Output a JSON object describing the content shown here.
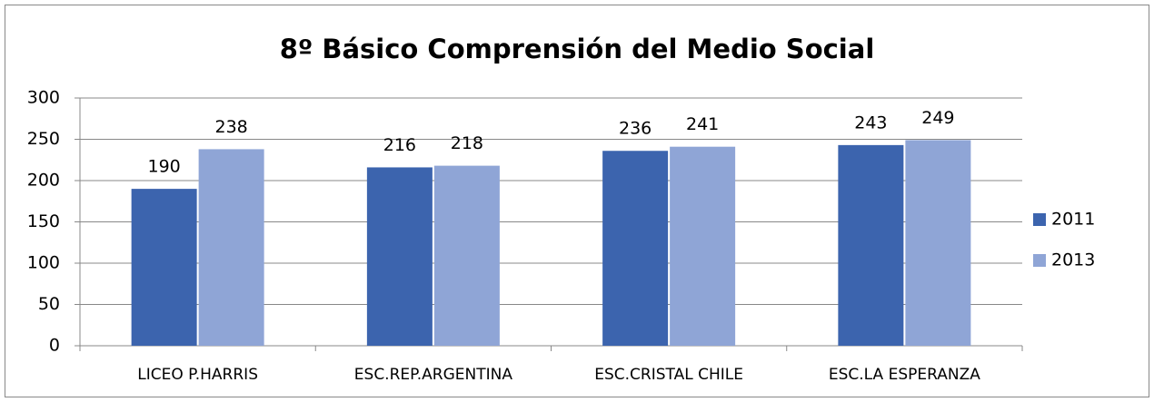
{
  "chart_data": {
    "type": "bar",
    "title": "8º Básico Comprensión del Medio Social",
    "categories": [
      "LICEO P.HARRIS",
      "ESC.REP.ARGENTINA",
      "ESC.CRISTAL CHILE",
      "ESC.LA ESPERANZA"
    ],
    "series": [
      {
        "name": "2011",
        "color": "#3c64ae",
        "values": [
          190,
          216,
          236,
          243
        ]
      },
      {
        "name": "2013",
        "color": "#8fa5d6",
        "values": [
          238,
          218,
          241,
          249
        ]
      }
    ],
    "ylim": [
      0,
      300
    ],
    "yticks": [
      0,
      50,
      100,
      150,
      200,
      250,
      300
    ],
    "grid": true,
    "legend": "right"
  }
}
